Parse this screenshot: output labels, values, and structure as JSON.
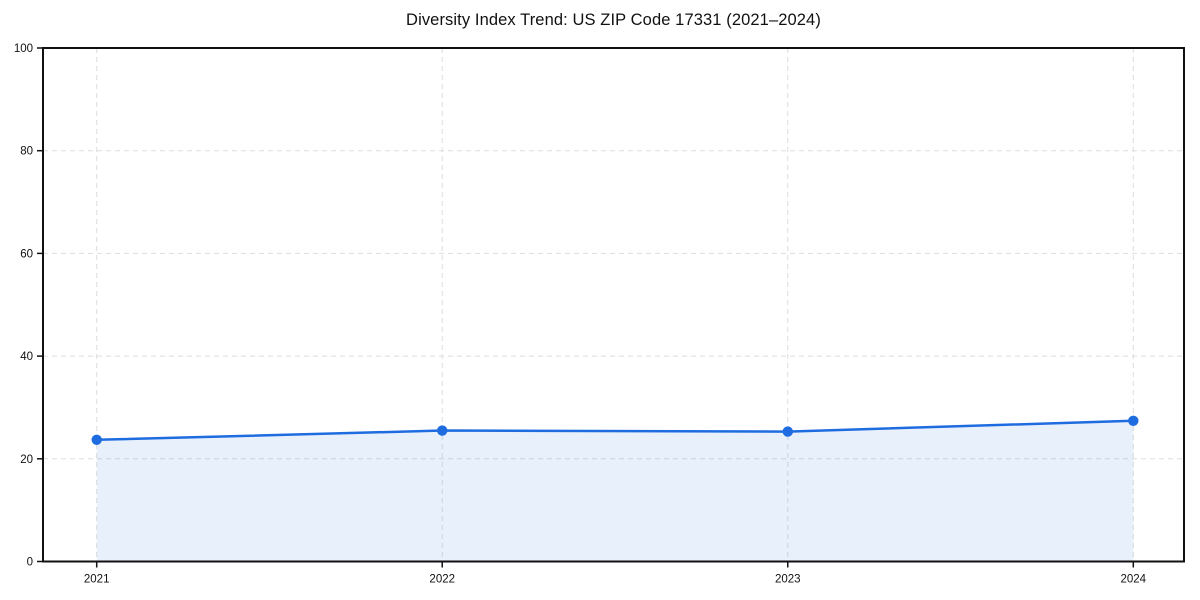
{
  "chart_data": {
    "type": "line",
    "title": "Diversity Index Trend: US ZIP Code 17331 (2021–2024)",
    "x": [
      "2021",
      "2022",
      "2023",
      "2024"
    ],
    "series": [
      {
        "name": "Diversity Index",
        "values": [
          23.7,
          25.5,
          25.3,
          27.4
        ]
      }
    ],
    "xlabel": "",
    "ylabel": "",
    "ylim": [
      0,
      100
    ],
    "yticks": [
      0,
      20,
      40,
      60,
      80,
      100
    ],
    "grid": true,
    "grid_style": "dashed",
    "legend_position": "none",
    "area_fill": true,
    "marker": "circle",
    "colors": {
      "line": "#1e6cdf",
      "marker": "#1e6cdf",
      "area": "rgba(30,108,223,0.10)",
      "grid": "#dedede",
      "spine": "#111111",
      "tick_text": "#111111",
      "background": "#ffffff"
    }
  }
}
